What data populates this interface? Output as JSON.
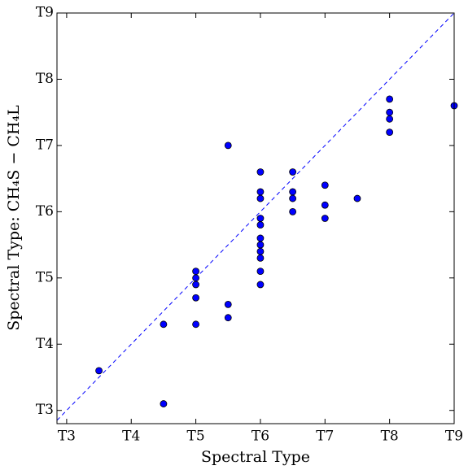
{
  "chart_data": {
    "type": "scatter",
    "xlabel": "Spectral Type",
    "ylabel": "Spectral Type: CH₄S − CH₄L",
    "x": [
      3.5,
      4.5,
      4.5,
      5,
      5,
      5,
      5,
      5,
      5.5,
      5.5,
      5.5,
      6,
      6,
      6,
      6,
      6,
      6,
      6,
      6,
      6,
      6,
      6,
      6.5,
      6.5,
      6.5,
      6.5,
      7,
      7,
      7,
      7.5,
      8,
      8,
      8,
      8,
      9
    ],
    "values": [
      3.6,
      4.3,
      3.1,
      5.1,
      5.0,
      4.9,
      4.7,
      4.3,
      7.0,
      4.6,
      4.4,
      6.6,
      6.3,
      6.2,
      5.9,
      5.8,
      5.6,
      5.5,
      5.4,
      5.3,
      5.1,
      4.9,
      6.6,
      6.3,
      6.2,
      6.0,
      6.4,
      6.1,
      5.9,
      6.2,
      7.7,
      7.5,
      7.4,
      7.2,
      7.6
    ],
    "color": "#0000ff",
    "xlim": [
      2.85,
      9
    ],
    "ylim": [
      2.8,
      9
    ],
    "xticks": [
      {
        "value": 3,
        "label": "T3"
      },
      {
        "value": 4,
        "label": "T4"
      },
      {
        "value": 5,
        "label": "T5"
      },
      {
        "value": 6,
        "label": "T6"
      },
      {
        "value": 7,
        "label": "T7"
      },
      {
        "value": 8,
        "label": "T8"
      },
      {
        "value": 9,
        "label": "T9"
      }
    ],
    "yticks": [
      {
        "value": 3,
        "label": "T3"
      },
      {
        "value": 4,
        "label": "T4"
      },
      {
        "value": 5,
        "label": "T5"
      },
      {
        "value": 6,
        "label": "T6"
      },
      {
        "value": 7,
        "label": "T7"
      },
      {
        "value": 8,
        "label": "T8"
      },
      {
        "value": 9,
        "label": "T9"
      }
    ]
  }
}
